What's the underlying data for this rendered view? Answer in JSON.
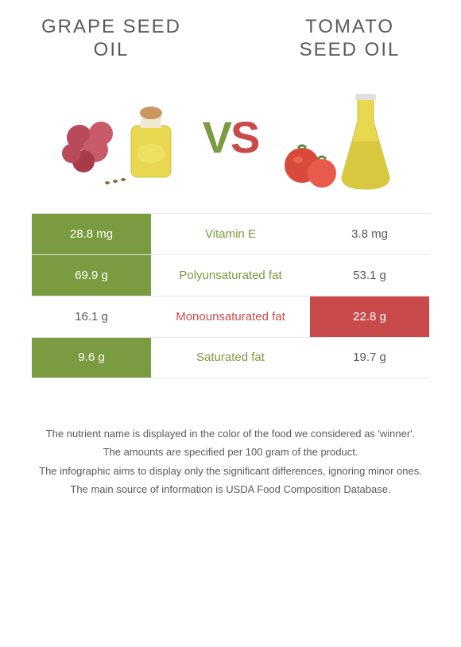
{
  "titles": {
    "left": "GRAPE SEED OIL",
    "right": "TOMATO SEED OIL"
  },
  "vs": {
    "v": "V",
    "s": "S"
  },
  "colors": {
    "green": "#7a9b3f",
    "red": "#c94a4a",
    "text": "#5a5a5a",
    "border": "#e8e8e8"
  },
  "rows": [
    {
      "left": "28.8 mg",
      "label": "Vitamin E",
      "right": "3.8 mg",
      "winner": "left"
    },
    {
      "left": "69.9 g",
      "label": "Polyunsaturated fat",
      "right": "53.1 g",
      "winner": "left"
    },
    {
      "left": "16.1 g",
      "label": "Monounsaturated fat",
      "right": "22.8 g",
      "winner": "right"
    },
    {
      "left": "9.6 g",
      "label": "Saturated fat",
      "right": "19.7 g",
      "winner": "left"
    }
  ],
  "footer": [
    "The nutrient name is displayed in the color of the food we considered as 'winner'.",
    "The amounts are specified per 100 gram of the product.",
    "The infographic aims to display only the significant differences, ignoring minor ones.",
    "The main source of information is USDA Food Composition Database."
  ]
}
